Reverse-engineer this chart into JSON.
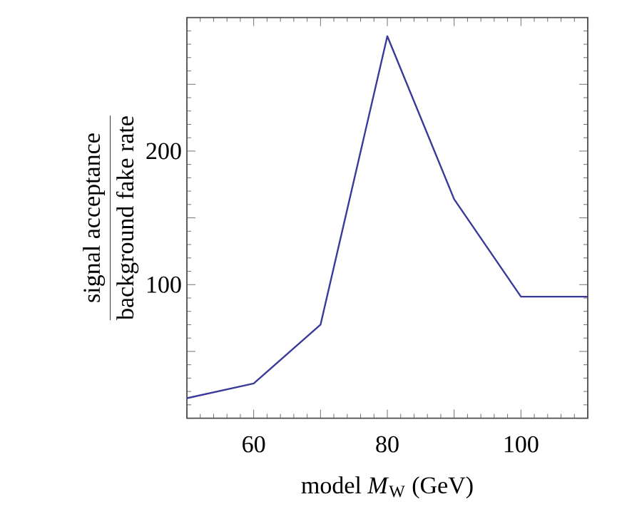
{
  "chart_data": {
    "type": "line",
    "xlabel": "model *M*$_{W}$ (GeV)",
    "ylabel": "\\frac{\\mathrm{signal\\ acceptance}}{\\mathrm{background\\ fake\\ rate}}",
    "x": [
      50,
      60,
      70,
      80,
      90,
      100,
      110
    ],
    "series": [
      {
        "color": "#3a3a9a",
        "values": [
          15,
          26,
          70,
          286,
          164,
          91,
          91
        ]
      }
    ],
    "xlim": [
      50,
      110
    ],
    "ylim": [
      0,
      300
    ],
    "xticks": [
      {
        "value": 50,
        "label": null
      },
      60,
      {
        "value": 70,
        "label": null
      },
      80,
      {
        "value": 90,
        "label": null
      },
      100,
      {
        "value": 110,
        "label": null
      }
    ],
    "yticks": [
      {
        "value": 0,
        "label": null
      },
      {
        "value": 50,
        "label": null
      },
      100,
      {
        "value": 150,
        "label": null
      },
      200,
      {
        "value": 250,
        "label": null
      },
      {
        "value": 300,
        "label": null
      }
    ],
    "grid": false,
    "marker": "none",
    "line_style": "solid"
  }
}
